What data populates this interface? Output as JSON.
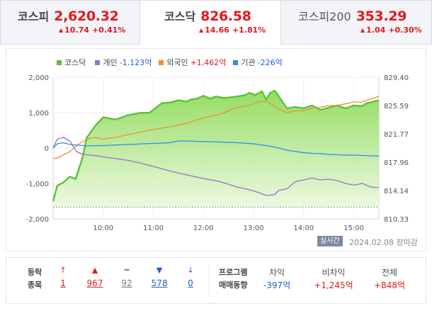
{
  "tabs": [
    {
      "name": "코스피",
      "value": "2,620.32",
      "change": "10.74",
      "pct": "+0.41%",
      "direction": "up"
    },
    {
      "name": "코스닥",
      "value": "826.58",
      "change": "14.66",
      "pct": "+1.81%",
      "direction": "up"
    },
    {
      "name": "코스피200",
      "value": "353.29",
      "change": "1.04",
      "pct": "+0.30%",
      "direction": "up"
    }
  ],
  "legend": [
    {
      "label": "코스닥",
      "value": "",
      "color": "#5cc137"
    },
    {
      "label": "개인",
      "value": "-1,123억",
      "color": "#9a6fc8"
    },
    {
      "label": "외국인",
      "value": "+1,462억",
      "color": "#f0902a"
    },
    {
      "label": "기관",
      "value": "-226억",
      "color": "#2a8fe0"
    }
  ],
  "chart_data": {
    "type": "line",
    "x_labels": [
      "10:00",
      "11:00",
      "12:00",
      "13:00",
      "14:00",
      "15:00"
    ],
    "x_range_minutes": [
      540,
      930
    ],
    "left_axis": {
      "ticks": [
        "2,000",
        "1,000",
        "0",
        "-1,000",
        "-2,000"
      ],
      "range": [
        -2000,
        2000
      ],
      "unit": "억"
    },
    "right_axis": {
      "ticks": [
        "829.40",
        "825.59",
        "821.77",
        "817.96",
        "814.14",
        "810.33"
      ],
      "range": [
        810.33,
        829.4
      ]
    },
    "baseline_prev_close": 811.92,
    "series": [
      {
        "name": "코스닥",
        "axis": "right",
        "color": "#5cc137",
        "fill": true,
        "x": [
          540,
          545,
          552,
          560,
          567,
          575,
          580,
          590,
          600,
          615,
          630,
          645,
          655,
          660,
          670,
          680,
          690,
          700,
          705,
          712,
          720,
          728,
          735,
          745,
          760,
          770,
          775,
          782,
          790,
          795,
          800,
          805,
          808,
          812,
          820,
          830,
          840,
          850,
          860,
          870,
          880,
          890,
          900,
          910,
          915,
          920,
          930
        ],
        "y": [
          812.7,
          814.8,
          815.2,
          816.0,
          815.7,
          818.5,
          821.2,
          822.8,
          824.0,
          823.7,
          824.3,
          824.6,
          824.6,
          825.0,
          825.9,
          826.0,
          826.3,
          826.1,
          826.4,
          826.5,
          826.9,
          826.5,
          826.8,
          826.6,
          826.8,
          827.0,
          827.3,
          827.0,
          827.5,
          826.4,
          827.3,
          827.6,
          827.2,
          826.5,
          825.2,
          825.4,
          825.2,
          825.6,
          825.0,
          825.3,
          825.6,
          825.2,
          825.6,
          825.5,
          825.9,
          826.0,
          826.3
        ]
      },
      {
        "name": "개인",
        "axis": "left",
        "color": "#9a6fc8",
        "x": [
          540,
          545,
          552,
          560,
          568,
          575,
          585,
          600,
          615,
          630,
          645,
          660,
          680,
          700,
          720,
          740,
          760,
          775,
          785,
          795,
          805,
          810,
          820,
          830,
          840,
          850,
          860,
          870,
          880,
          890,
          900,
          910,
          920,
          930
        ],
        "y": [
          0,
          250,
          300,
          200,
          -100,
          -180,
          -200,
          -250,
          -300,
          -350,
          -430,
          -520,
          -650,
          -760,
          -860,
          -950,
          -1100,
          -1180,
          -1250,
          -1340,
          -1320,
          -1200,
          -1150,
          -950,
          -900,
          -850,
          -900,
          -880,
          -920,
          -1000,
          -1050,
          -1000,
          -1100,
          -1123
        ]
      },
      {
        "name": "외국인",
        "axis": "left",
        "color": "#f0902a",
        "x": [
          540,
          545,
          552,
          560,
          570,
          580,
          590,
          600,
          615,
          630,
          645,
          660,
          680,
          700,
          720,
          740,
          760,
          775,
          785,
          795,
          805,
          810,
          820,
          830,
          840,
          850,
          860,
          870,
          880,
          890,
          900,
          910,
          920,
          930
        ],
        "y": [
          -300,
          -280,
          -200,
          -100,
          100,
          250,
          300,
          250,
          300,
          380,
          450,
          520,
          600,
          700,
          850,
          950,
          1150,
          1200,
          1300,
          1320,
          1180,
          1100,
          1000,
          1050,
          1050,
          1120,
          1150,
          1200,
          1200,
          1250,
          1300,
          1300,
          1380,
          1462
        ]
      },
      {
        "name": "기관",
        "axis": "left",
        "color": "#2a8fe0",
        "x": [
          540,
          545,
          552,
          560,
          570,
          580,
          600,
          620,
          640,
          660,
          680,
          690,
          700,
          720,
          740,
          760,
          780,
          800,
          810,
          820,
          830,
          840,
          850,
          860,
          870,
          880,
          890,
          900,
          910,
          920,
          930
        ],
        "y": [
          0,
          120,
          150,
          100,
          80,
          60,
          70,
          90,
          110,
          130,
          150,
          200,
          200,
          180,
          170,
          150,
          120,
          50,
          0,
          -60,
          -100,
          -130,
          -150,
          -160,
          -180,
          -190,
          -200,
          -200,
          -210,
          -220,
          -226
        ]
      }
    ]
  },
  "status": {
    "realtime": "실시간",
    "date": "2024.02.08",
    "market": "장마감"
  },
  "breadth": {
    "title_line1": "등락",
    "title_line2": "종목",
    "items": [
      {
        "icon": "upper-limit-icon",
        "symbol": "↑",
        "value": "1",
        "color": "red"
      },
      {
        "icon": "rise-icon",
        "symbol": "▲",
        "value": "967",
        "color": "red"
      },
      {
        "icon": "unchanged-icon",
        "symbol": "━",
        "value": "92",
        "color": "gray"
      },
      {
        "icon": "fall-icon",
        "symbol": "▼",
        "value": "578",
        "color": "blue"
      },
      {
        "icon": "lower-limit-icon",
        "symbol": "↓",
        "value": "0",
        "color": "blue"
      }
    ],
    "program_line1": "프로그램",
    "program_line2": "매매동향",
    "program": [
      {
        "label": "차익",
        "value": "-397억",
        "color": "blue"
      },
      {
        "label": "비차익",
        "value": "+1,245억",
        "color": "red"
      },
      {
        "label": "전체",
        "value": "+848억",
        "color": "red"
      }
    ]
  }
}
